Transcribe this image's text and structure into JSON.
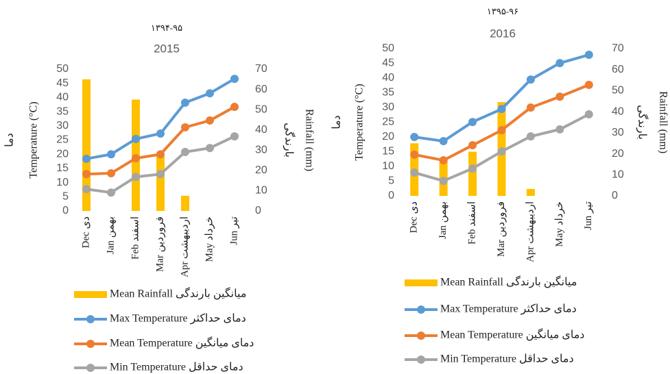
{
  "chart_data": [
    {
      "type": "combo",
      "subtitle": "۱۳۹۴-۹۵",
      "title": "2015",
      "y_label_fa": "دما",
      "y_label": "Temperature (°C)",
      "y2_label_fa": "بارندگی",
      "y2_label": "Rainfall (mm)",
      "categories": [
        "Dec دی",
        "Jan بهمن",
        "Feb اسفند",
        "Mar فروردین",
        "Apr اردیبهشت",
        "May خرداد",
        "Jun تیر"
      ],
      "ylim": [
        0,
        50
      ],
      "yticks": [
        0,
        5,
        10,
        15,
        20,
        25,
        30,
        35,
        40,
        45,
        50
      ],
      "y2lim": [
        0,
        70
      ],
      "y2ticks": [
        0,
        10,
        20,
        30,
        40,
        50,
        60,
        70
      ],
      "series": [
        {
          "name": "Mean Rainfall میانگین بارندگی",
          "type": "bar",
          "axis": "y2",
          "color": "#ffc000",
          "values": [
            65,
            0,
            55,
            27,
            7.5,
            0,
            0
          ]
        },
        {
          "name": "Max Temperature دمای حداکثر",
          "type": "line",
          "color": "#5b9bd5",
          "values": [
            18.4,
            20,
            25.4,
            27.3,
            38.2,
            41.5,
            46.6
          ]
        },
        {
          "name": "Mean Temperature دمای میانگین",
          "type": "line",
          "color": "#ed7d31",
          "values": [
            13,
            13.3,
            18.6,
            20,
            29.5,
            31.9,
            36.7
          ]
        },
        {
          "name": "Min Temperature دمای حداقل",
          "type": "line",
          "color": "#a5a5a5",
          "values": [
            7.7,
            6.5,
            12,
            13,
            20.8,
            22.2,
            26.3
          ]
        }
      ]
    },
    {
      "type": "combo",
      "subtitle": "۱۳۹۵-۹۶",
      "title": "2016",
      "y_label_fa": "دما",
      "y_label": "Temperature (°C)",
      "y2_label_fa": "بارندگی",
      "y2_label": "Rainfall (mm)",
      "categories": [
        "Dec دی",
        "Jan بهمن",
        "Feb اسفند",
        "Mar فروردین",
        "Apr اردیبهشت",
        "May خرداد",
        "Jun تیر"
      ],
      "ylim": [
        0,
        50
      ],
      "yticks": [
        0,
        5,
        10,
        15,
        20,
        25,
        30,
        35,
        40,
        45,
        50
      ],
      "y2lim": [
        0,
        70
      ],
      "y2ticks": [
        0,
        10,
        20,
        30,
        40,
        50,
        60,
        70
      ],
      "series": [
        {
          "name": "Mean Rainfall میانگین بارندگی",
          "type": "bar",
          "axis": "y2",
          "color": "#ffc000",
          "values": [
            25,
            17,
            21,
            44.6,
            3.3,
            0,
            0
          ]
        },
        {
          "name": "Max Temperature دمای حداکثر",
          "type": "line",
          "color": "#5b9bd5",
          "values": [
            20,
            18.6,
            25.1,
            29.5,
            39.5,
            45.1,
            47.9
          ]
        },
        {
          "name": "Mean Temperature دمای میانگین",
          "type": "line",
          "color": "#ed7d31",
          "values": [
            14,
            12.1,
            17.2,
            22.3,
            30,
            33.7,
            37.7
          ]
        },
        {
          "name": "Min Temperature دمای حداقل",
          "type": "line",
          "color": "#a5a5a5",
          "values": [
            7.9,
            5.1,
            9.3,
            15.1,
            20.2,
            22.6,
            27.7
          ]
        }
      ]
    }
  ]
}
